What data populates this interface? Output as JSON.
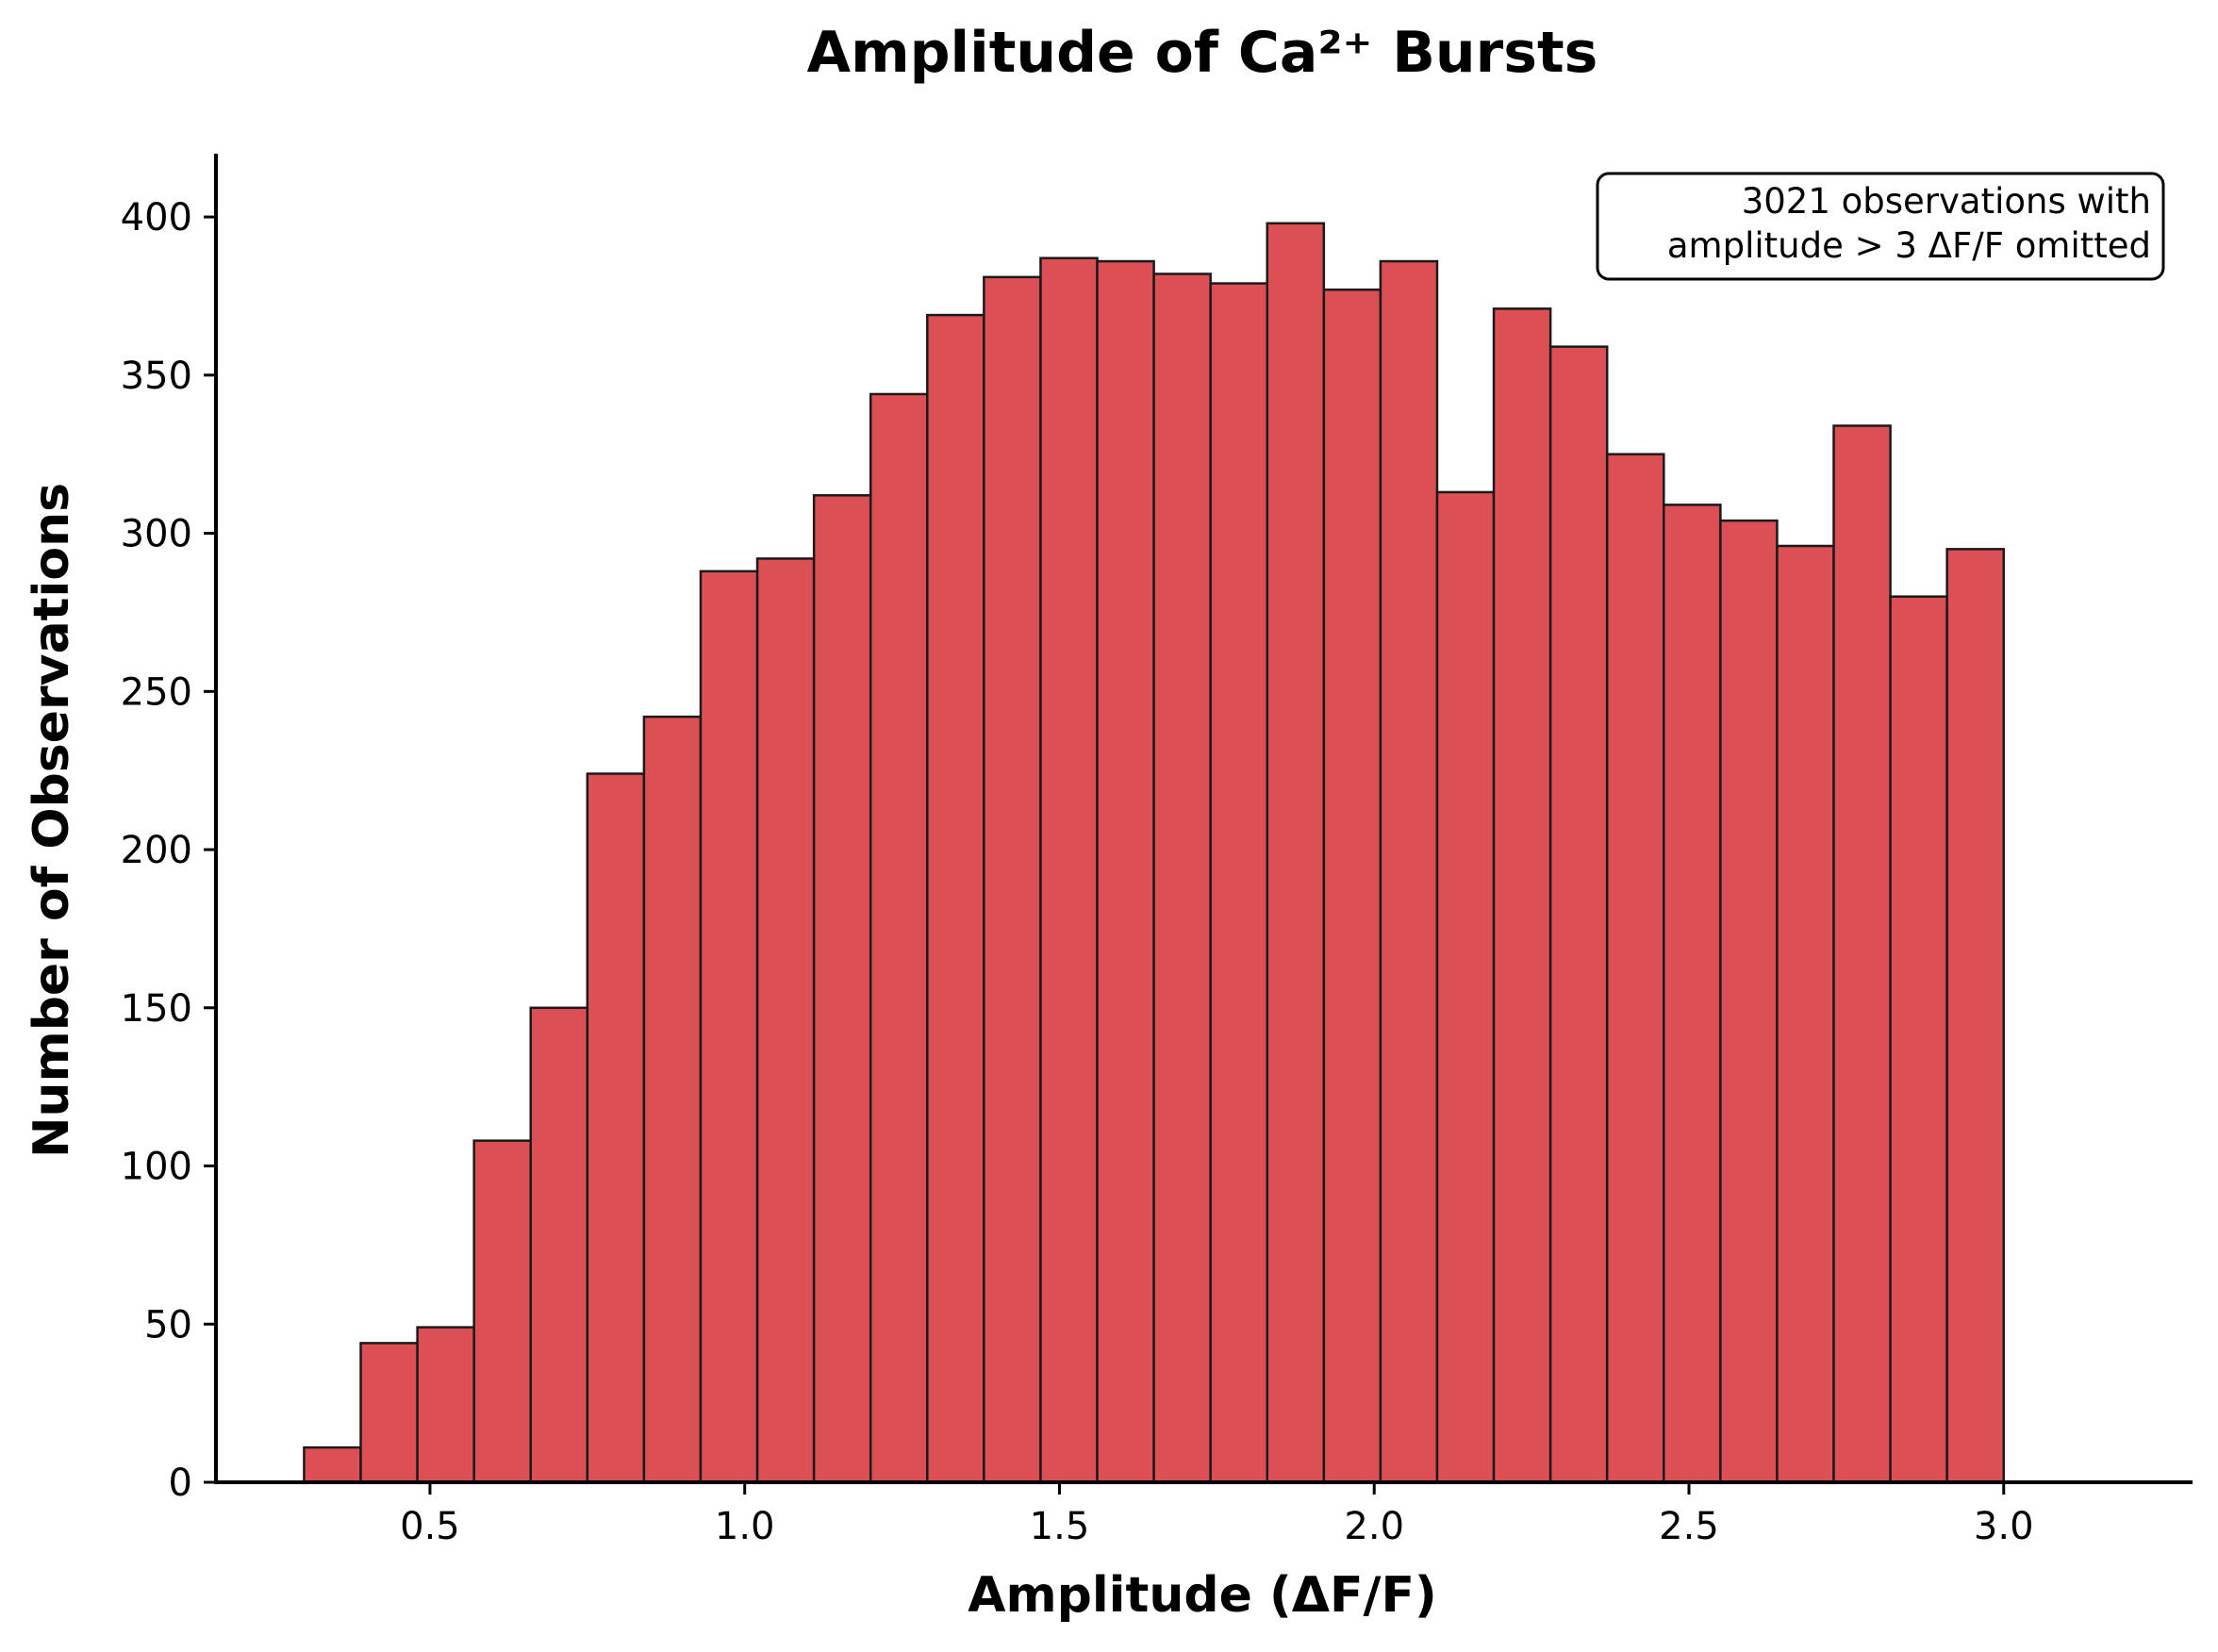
{
  "chart_data": {
    "type": "bar",
    "title": "Amplitude of Ca²⁺ Bursts",
    "xlabel": "Amplitude (ΔF/F)",
    "ylabel": "Number of Observations",
    "xlim": [
      0.16,
      3.3
    ],
    "ylim": [
      0,
      420
    ],
    "xticks": [
      0.5,
      1.0,
      1.5,
      2.0,
      2.5,
      3.0
    ],
    "xtick_labels": [
      "0.5",
      "1.0",
      "1.5",
      "2.0",
      "2.5",
      "3.0"
    ],
    "yticks": [
      0,
      50,
      100,
      150,
      200,
      250,
      300,
      350,
      400
    ],
    "ytick_labels": [
      "0",
      "50",
      "100",
      "150",
      "200",
      "250",
      "300",
      "350",
      "400"
    ],
    "bin_start": 0.3,
    "bin_width": 0.09,
    "values": [
      11,
      44,
      49,
      108,
      150,
      224,
      242,
      288,
      292,
      312,
      344,
      369,
      381,
      387,
      386,
      382,
      379,
      398,
      377,
      386,
      313,
      371,
      359,
      325,
      309,
      304,
      296,
      334,
      280,
      295
    ],
    "bar_color": "#DC5055",
    "edge_color": "#1a1a1a",
    "annotation": {
      "lines": [
        "3021 observations with",
        "amplitude > 3 ΔF/F omitted"
      ],
      "placement": "top-right"
    },
    "grid": false,
    "legend": "none"
  }
}
